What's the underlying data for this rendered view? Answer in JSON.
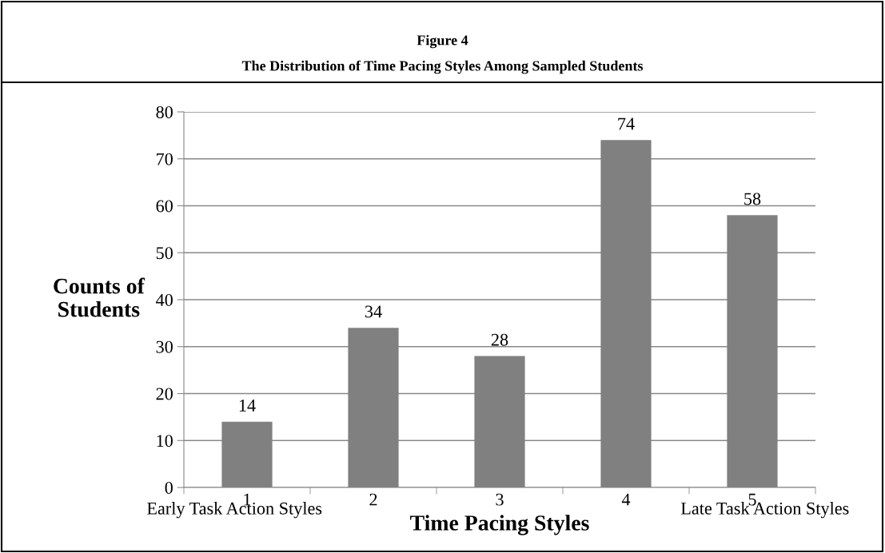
{
  "chart_data": {
    "type": "bar",
    "title": "Figure 4\nThe Distribution of Time Pacing Styles Among Sampled Students",
    "categories": [
      "1",
      "2",
      "3",
      "4",
      "5"
    ],
    "values": [
      14,
      34,
      28,
      74,
      58
    ],
    "color": "#808080",
    "ylim": [
      0,
      80
    ],
    "yticks": [
      0,
      10,
      20,
      30,
      40,
      50,
      60,
      70,
      80
    ],
    "grid": "y",
    "data_labels": true,
    "xlabel": "Time Pacing Styles",
    "ylabel": "Counts of\nStudents",
    "annotations": [
      "Early Task Action Styles",
      "Late Task Action Styles"
    ]
  }
}
